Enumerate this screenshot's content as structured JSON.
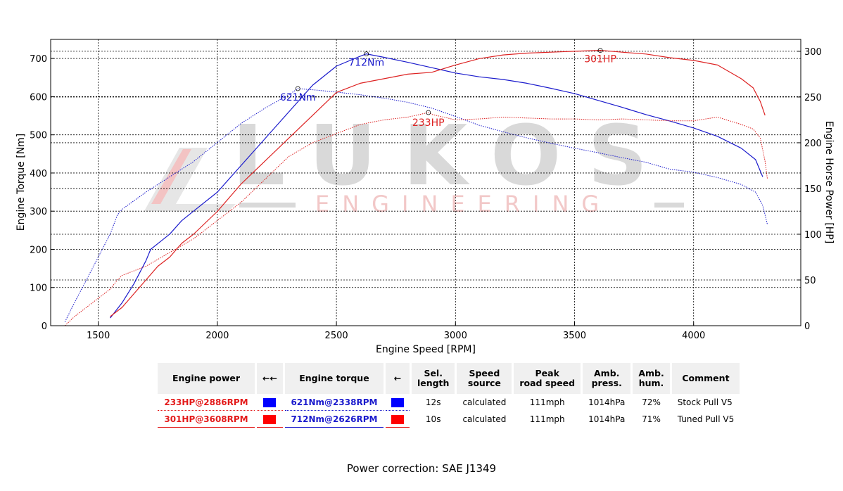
{
  "chart_data": {
    "type": "line",
    "xlabel": "Engine Speed [RPM]",
    "ylabel_left": "Engine Torque [Nm]",
    "ylabel_right": "Engine Horse Power [HP]",
    "xlim": [
      1300,
      4450
    ],
    "ylim_left": [
      0,
      750
    ],
    "ylim_right": [
      0,
      313
    ],
    "xticks": [
      1500,
      2000,
      2500,
      3000,
      3500,
      4000
    ],
    "yticks_left": [
      0,
      100,
      200,
      300,
      400,
      500,
      600,
      700
    ],
    "yticks_right": [
      0,
      50,
      100,
      150,
      200,
      250,
      300
    ],
    "grid": true,
    "watermark": {
      "brand": "LUKOS",
      "sub": "ENGINEERING"
    },
    "series": [
      {
        "axis": "left",
        "color": "#1a1acc",
        "style": "dotted",
        "x": [
          1360,
          1400,
          1450,
          1500,
          1550,
          1580,
          1600,
          1700,
          1800,
          1900,
          2000,
          2100,
          2200,
          2300,
          2338,
          2400,
          2500,
          2600,
          2700,
          2800,
          2900,
          3000,
          3100,
          3200,
          3300,
          3400,
          3500,
          3600,
          3700,
          3800,
          3900,
          4000,
          4100,
          4200,
          4260,
          4290,
          4310
        ],
        "y": [
          10,
          60,
          120,
          180,
          240,
          290,
          305,
          350,
          390,
          430,
          480,
          530,
          570,
          605,
          621,
          618,
          612,
          605,
          596,
          585,
          570,
          548,
          525,
          508,
          492,
          478,
          465,
          453,
          440,
          428,
          410,
          402,
          388,
          370,
          350,
          315,
          265
        ]
      },
      {
        "axis": "left",
        "color": "#1a1acc",
        "style": "solid",
        "x": [
          1550,
          1600,
          1650,
          1700,
          1720,
          1750,
          1800,
          1850,
          1900,
          2000,
          2100,
          2200,
          2300,
          2400,
          2500,
          2600,
          2626,
          2700,
          2800,
          2900,
          3000,
          3100,
          3200,
          3300,
          3400,
          3500,
          3600,
          3700,
          3800,
          3900,
          4000,
          4100,
          4200,
          4260,
          4290
        ],
        "y": [
          20,
          60,
          110,
          170,
          200,
          215,
          240,
          275,
          300,
          350,
          420,
          490,
          560,
          630,
          680,
          706,
          712,
          703,
          690,
          676,
          662,
          652,
          645,
          635,
          622,
          608,
          590,
          572,
          553,
          536,
          518,
          496,
          465,
          435,
          390
        ]
      },
      {
        "axis": "right",
        "color": "#dd2222",
        "style": "dotted",
        "x": [
          1360,
          1400,
          1450,
          1500,
          1550,
          1580,
          1600,
          1700,
          1800,
          1900,
          2000,
          2100,
          2200,
          2300,
          2400,
          2500,
          2600,
          2700,
          2800,
          2886,
          2900,
          3000,
          3100,
          3200,
          3300,
          3400,
          3500,
          3600,
          3700,
          3800,
          3900,
          4000,
          4100,
          4200,
          4250,
          4280,
          4300,
          4310
        ],
        "y": [
          0,
          10,
          20,
          30,
          40,
          50,
          55,
          65,
          80,
          95,
          115,
          135,
          160,
          185,
          200,
          210,
          220,
          225,
          228,
          233,
          231,
          225,
          226,
          228,
          227,
          226,
          226,
          225,
          226,
          225,
          224,
          224,
          228,
          220,
          215,
          205,
          180,
          160
        ]
      },
      {
        "axis": "right",
        "color": "#dd2222",
        "style": "solid",
        "x": [
          1550,
          1600,
          1650,
          1700,
          1750,
          1800,
          1850,
          1900,
          2000,
          2100,
          2200,
          2300,
          2400,
          2500,
          2600,
          2700,
          2800,
          2900,
          3000,
          3100,
          3200,
          3300,
          3400,
          3500,
          3608,
          3700,
          3800,
          3900,
          4000,
          4100,
          4200,
          4250,
          4280,
          4300
        ],
        "y": [
          10,
          20,
          35,
          50,
          65,
          75,
          90,
          100,
          125,
          155,
          180,
          205,
          230,
          255,
          265,
          270,
          275,
          277,
          285,
          292,
          296,
          298,
          299,
          300,
          301,
          299,
          297,
          293,
          290,
          285,
          270,
          260,
          245,
          230
        ]
      }
    ],
    "annotations": [
      {
        "label": "712Nm",
        "x": 2626,
        "y": 712,
        "axis": "left",
        "color": "#1a1acc"
      },
      {
        "label": "621Nm",
        "x": 2338,
        "y": 621,
        "axis": "left",
        "color": "#1a1acc"
      },
      {
        "label": "301HP",
        "x": 3608,
        "y": 301,
        "axis": "right",
        "color": "#dd2222"
      },
      {
        "label": "233HP",
        "x": 2886,
        "y": 233,
        "axis": "right",
        "color": "#dd2222"
      }
    ]
  },
  "table": {
    "headers": {
      "engine_power": "Engine power",
      "power_arrows": "←←",
      "engine_torque": "Engine torque",
      "torque_arrow": "←",
      "sel_length_1": "Sel.",
      "sel_length_2": "length",
      "speed_source_1": "Speed",
      "speed_source_2": "source",
      "peak_speed_1": "Peak",
      "peak_speed_2": "road speed",
      "amb_press_1": "Amb.",
      "amb_press_2": "press.",
      "amb_hum_1": "Amb.",
      "amb_hum_2": "hum.",
      "comment": "Comment"
    },
    "rows": [
      {
        "power": "233HP@2886RPM",
        "power_swatch": "#0000ff",
        "torque": "621Nm@2338RPM",
        "torque_swatch": "#0000ff",
        "length": "12s",
        "source": "calculated",
        "speed": "111mph",
        "press": "1014hPa",
        "hum": "72%",
        "comment": "Stock Pull V5"
      },
      {
        "power": "301HP@3608RPM",
        "power_swatch": "#ff0000",
        "torque": "712Nm@2626RPM",
        "torque_swatch": "#ff0000",
        "length": "10s",
        "source": "calculated",
        "speed": "111mph",
        "press": "1014hPa",
        "hum": "71%",
        "comment": "Tuned Pull V5"
      }
    ]
  },
  "footer": {
    "power_correction": "Power correction: SAE J1349"
  }
}
